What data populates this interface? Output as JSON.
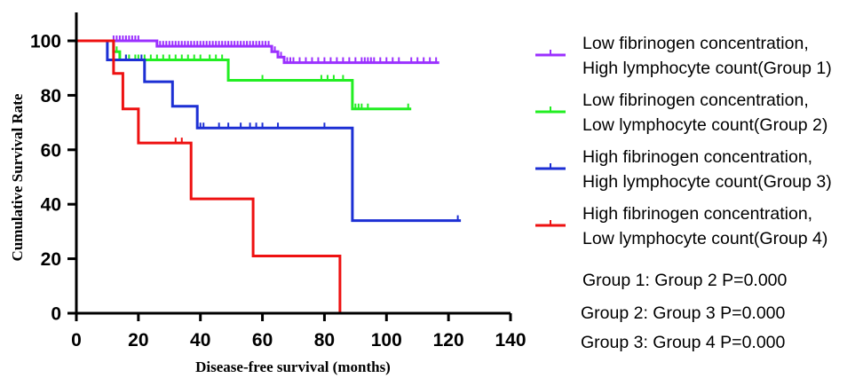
{
  "chart_data": {
    "type": "line",
    "subtype": "kaplan-meier step",
    "xlabel": "Disease-free survival (months)",
    "ylabel": "Cumulative Survival Rate",
    "xlim": [
      0,
      140
    ],
    "ylim": [
      0,
      100
    ],
    "xticks": [
      "0",
      "20",
      "40",
      "60",
      "80",
      "100",
      "120",
      "140"
    ],
    "yticks": [
      "0",
      "20",
      "40",
      "60",
      "80",
      "100"
    ],
    "grid": false,
    "legend_position": "right",
    "series": [
      {
        "name_line1": "Low fibrinogen concentration,",
        "name_line2": "High lymphocyte count(Group 1)",
        "color": "#9b30ff",
        "steps": [
          [
            0,
            100
          ],
          [
            26,
            100
          ],
          [
            26,
            98
          ],
          [
            63,
            98
          ],
          [
            63,
            96
          ],
          [
            65,
            96
          ],
          [
            65,
            94
          ],
          [
            67,
            94
          ],
          [
            67,
            92
          ],
          [
            117,
            92
          ]
        ],
        "censored": [
          12,
          13,
          14,
          15,
          16,
          17,
          18,
          19,
          20,
          27,
          28,
          29,
          30,
          31,
          32,
          33,
          34,
          35,
          36,
          37,
          38,
          39,
          40,
          41,
          42,
          43,
          44,
          45,
          46,
          47,
          48,
          49,
          50,
          51,
          52,
          53,
          54,
          55,
          56,
          57,
          58,
          59,
          60,
          61,
          62,
          64,
          66,
          68,
          69,
          70,
          72,
          74,
          76,
          78,
          80,
          82,
          84,
          86,
          88,
          90,
          92,
          93,
          94,
          95,
          96,
          98,
          100,
          102,
          104,
          108,
          110,
          112,
          114,
          116
        ]
      },
      {
        "name_line1": "Low fibrinogen concentration,",
        "name_line2": "Low lymphocyte count(Group 2)",
        "color": "#22ee22",
        "steps": [
          [
            0,
            100
          ],
          [
            12,
            100
          ],
          [
            12,
            96
          ],
          [
            14,
            96
          ],
          [
            14,
            93
          ],
          [
            49,
            93
          ],
          [
            49,
            85.5
          ],
          [
            89,
            85.5
          ],
          [
            89,
            75
          ],
          [
            108,
            75
          ]
        ],
        "censored": [
          13,
          16,
          17,
          19,
          20,
          22,
          24,
          26,
          28,
          30,
          32,
          34,
          36,
          38,
          40,
          43,
          45,
          47,
          60,
          79,
          81,
          83,
          86,
          90,
          91,
          92,
          94,
          107
        ]
      },
      {
        "name_line1": "High fibrinogen concentration,",
        "name_line2": "High lymphocyte count(Group 3)",
        "color": "#1c2fd4",
        "steps": [
          [
            0,
            100
          ],
          [
            10,
            100
          ],
          [
            10,
            93
          ],
          [
            22,
            93
          ],
          [
            22,
            85
          ],
          [
            31,
            85
          ],
          [
            31,
            76
          ],
          [
            39,
            76
          ],
          [
            39,
            68
          ],
          [
            89,
            68
          ],
          [
            89,
            34
          ],
          [
            124,
            34
          ]
        ],
        "censored": [
          16,
          21,
          40,
          41,
          46,
          49,
          53,
          56,
          58,
          60,
          65,
          80,
          123
        ]
      },
      {
        "name_line1": "High fibrinogen concentration,",
        "name_line2": "Low lymphocyte count(Group 4)",
        "color": "#ee1111",
        "steps": [
          [
            0,
            100
          ],
          [
            12,
            100
          ],
          [
            12,
            88
          ],
          [
            15,
            88
          ],
          [
            15,
            75
          ],
          [
            20,
            75
          ],
          [
            20,
            62.5
          ],
          [
            37,
            62.5
          ],
          [
            37,
            42
          ],
          [
            57,
            42
          ],
          [
            57,
            21
          ],
          [
            85,
            21
          ],
          [
            85,
            0
          ]
        ],
        "censored": [
          32,
          34
        ]
      }
    ],
    "annotations": [
      "Group 1: Group 2 P=0.000",
      "Group 2: Group 3 P=0.000",
      "Group 3: Group 4 P=0.000"
    ]
  }
}
